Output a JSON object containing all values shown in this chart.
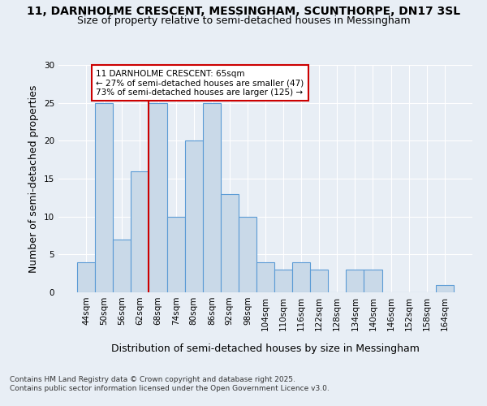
{
  "title_line1": "11, DARNHOLME CRESCENT, MESSINGHAM, SCUNTHORPE, DN17 3SL",
  "title_line2": "Size of property relative to semi-detached houses in Messingham",
  "xlabel": "Distribution of semi-detached houses by size in Messingham",
  "ylabel": "Number of semi-detached properties",
  "footer_line1": "Contains HM Land Registry data © Crown copyright and database right 2025.",
  "footer_line2": "Contains public sector information licensed under the Open Government Licence v3.0.",
  "bar_labels": [
    "44sqm",
    "50sqm",
    "56sqm",
    "62sqm",
    "68sqm",
    "74sqm",
    "80sqm",
    "86sqm",
    "92sqm",
    "98sqm",
    "104sqm",
    "110sqm",
    "116sqm",
    "122sqm",
    "128sqm",
    "134sqm",
    "140sqm",
    "146sqm",
    "152sqm",
    "158sqm",
    "164sqm"
  ],
  "bar_values": [
    4,
    25,
    7,
    16,
    25,
    10,
    20,
    25,
    13,
    10,
    4,
    3,
    4,
    3,
    0,
    3,
    3,
    0,
    0,
    0,
    1
  ],
  "bar_color": "#c9d9e8",
  "bar_edge_color": "#5b9bd5",
  "property_label": "11 DARNHOLME CRESCENT: 65sqm",
  "pct_smaller": 27,
  "pct_larger": 73,
  "count_smaller": 47,
  "count_larger": 125,
  "ylim": [
    0,
    30
  ],
  "yticks": [
    0,
    5,
    10,
    15,
    20,
    25,
    30
  ],
  "bg_color": "#e8eef5",
  "plot_bg_color": "#e8eef5",
  "grid_color": "#ffffff",
  "vline_color": "#cc0000",
  "box_edge_color": "#cc0000",
  "title_fontsize": 10,
  "subtitle_fontsize": 9,
  "axis_label_fontsize": 9,
  "tick_fontsize": 7.5,
  "annotation_fontsize": 7.5,
  "footer_fontsize": 6.5,
  "vline_bin_index": 3
}
